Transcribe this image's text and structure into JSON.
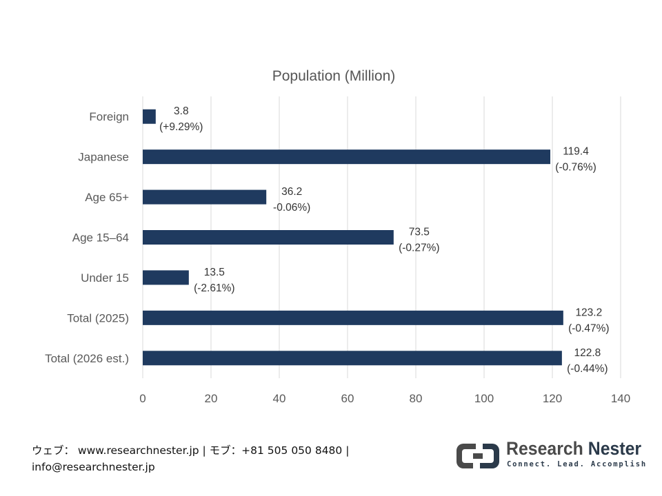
{
  "chart_data": {
    "type": "bar",
    "orientation": "horizontal",
    "title": "Population (Million)",
    "categories": [
      "Foreign",
      "Japanese",
      "Age 65+",
      "Age 15–64",
      "Under 15",
      "Total (2025)",
      "Total (2026 est.)"
    ],
    "values": [
      3.8,
      119.4,
      36.2,
      73.5,
      13.5,
      123.2,
      122.8
    ],
    "value_labels": [
      "3.8",
      "119.4",
      "36.2",
      "73.5",
      "13.5",
      "123.2",
      "122.8"
    ],
    "change_labels": [
      "(+9.29%)",
      "(-0.76%)",
      "-0.06%)",
      "(-0.27%)",
      "(-2.61%)",
      "(-0.47%)",
      "(-0.44%)"
    ],
    "xlim": [
      0,
      140
    ],
    "x_ticks": [
      0,
      20,
      40,
      60,
      80,
      100,
      120,
      140
    ],
    "grid": true,
    "bar_color": "#1f3a5f"
  },
  "footer": {
    "line1": "ウェブ： www.researchnester.jp | モブ：+81 505 050 8480 |",
    "line2": "info@researchnester.jp"
  },
  "logo": {
    "name_part1": "Research",
    "name_part2": "Nester",
    "tagline": "Connect. Lead. Accomplish"
  }
}
